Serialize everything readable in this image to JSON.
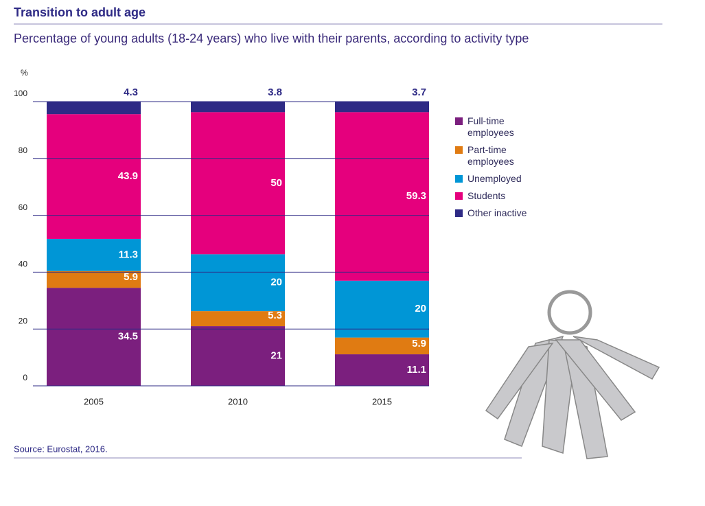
{
  "chart_data": {
    "type": "stacked-bar",
    "title": "Transition to adult age",
    "subtitle": "Percentage of young adults (18-24 years) who live with their parents, according to activity type",
    "y_label": "%",
    "source": "Source: Eurostat, 2016.",
    "categories": [
      "2005",
      "2010",
      "2015"
    ],
    "series": [
      {
        "name": "Full-time employees",
        "color": "#7b1f7e",
        "values": [
          34.5,
          21,
          11.1
        ]
      },
      {
        "name": "Part-time employees",
        "color": "#e07b12",
        "values": [
          5.9,
          5.3,
          5.9
        ]
      },
      {
        "name": "Unemployed",
        "color": "#0096d6",
        "values": [
          11.3,
          20,
          20
        ]
      },
      {
        "name": "Students",
        "color": "#e5007d",
        "values": [
          43.9,
          50,
          59.3
        ]
      },
      {
        "name": "Other inactive",
        "color": "#2e2a85",
        "values": [
          4.3,
          3.8,
          3.7
        ]
      }
    ],
    "ylim": [
      0,
      100
    ],
    "yticks": [
      0,
      20,
      40,
      60,
      80,
      100
    ],
    "grid": true
  }
}
